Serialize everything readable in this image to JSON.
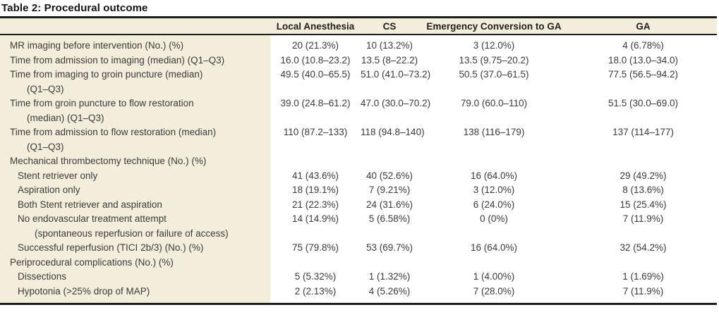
{
  "title": "Table 2: Procedural outcome",
  "colors": {
    "band_beige": "#f3eedb",
    "rule_black": "#1c1c1c",
    "text": "#3a3a3a"
  },
  "table": {
    "columns": [
      "",
      "Local Anesthesia",
      "CS",
      "Emergency Conversion to GA",
      "GA"
    ],
    "rows": [
      {
        "label": "MR imaging before intervention (No.) (%)",
        "indent": 0,
        "values": [
          "20 (21.3%)",
          "10 (13.2%)",
          "3 (12.0%)",
          "4 (6.78%)"
        ]
      },
      {
        "label": "Time from admission to imaging (median) (Q1–Q3)",
        "indent": 0,
        "values": [
          "16.0 (10.8–23.2)",
          "13.5 (8–22.2)",
          "13.5 (9.75–20.2)",
          "18.0 (13.0–34.0)"
        ]
      },
      {
        "label": "Time from imaging to groin puncture (median)",
        "label2": "(Q1–Q3)",
        "indent": 0,
        "values": [
          "49.5 (40.0–65.5)",
          "51.0 (41.0–73.2)",
          "50.5 (37.0–61.5)",
          "77.5 (56.5–94.2)"
        ]
      },
      {
        "label": "Time from groin puncture to flow restoration",
        "label2": "(median) (Q1–Q3)",
        "indent": 0,
        "values": [
          "39.0 (24.8–61.2)",
          "47.0 (30.0–70.2)",
          "79.0 (60.0–110)",
          "51.5 (30.0–69.0)"
        ]
      },
      {
        "label": "Time from admission to flow restoration (median)",
        "label2": "(Q1–Q3)",
        "indent": 0,
        "values": [
          "110 (87.2–133)",
          "118 (94.8–140)",
          "138 (116–179)",
          "137 (114–177)"
        ]
      },
      {
        "label": "Mechanical thrombectomy technique (No.) (%)",
        "indent": 0,
        "values": [
          "",
          "",
          "",
          ""
        ]
      },
      {
        "label": "Stent retriever only",
        "indent": 1,
        "values": [
          "41 (43.6%)",
          "40 (52.6%)",
          "16 (64.0%)",
          "29 (49.2%)"
        ]
      },
      {
        "label": "Aspiration only",
        "indent": 1,
        "values": [
          "18 (19.1%)",
          "7 (9.21%)",
          "3 (12.0%)",
          "8 (13.6%)"
        ]
      },
      {
        "label": "Both Stent retriever and aspiration",
        "indent": 1,
        "values": [
          "21 (22.3%)",
          "24 (31.6%)",
          "6 (24.0%)",
          "15 (25.4%)"
        ]
      },
      {
        "label": "No endovascular treatment attempt",
        "label2": "(spontaneous reperfusion or failure of access)",
        "indent": 1,
        "values": [
          "14 (14.9%)",
          "5 (6.58%)",
          "0 (0%)",
          "7 (11.9%)"
        ]
      },
      {
        "label": "Successful reperfusion (TICI 2b/3) (No.) (%)",
        "indent": 1,
        "values": [
          "75 (79.8%)",
          "53 (69.7%)",
          "16 (64.0%)",
          "32 (54.2%)"
        ]
      },
      {
        "label": "Periprocedural complications (No.) (%)",
        "indent": 0,
        "values": [
          "",
          "",
          "",
          ""
        ]
      },
      {
        "label": "Dissections",
        "indent": 1,
        "values": [
          "5 (5.32%)",
          "1 (1.32%)",
          "1 (4.00%)",
          "1 (1.69%)"
        ]
      },
      {
        "label": "Hypotonia (>25% drop of MAP)",
        "indent": 1,
        "values": [
          "2 (2.13%)",
          "4 (5.26%)",
          "7 (28.0%)",
          "7 (11.9%)"
        ]
      }
    ]
  }
}
